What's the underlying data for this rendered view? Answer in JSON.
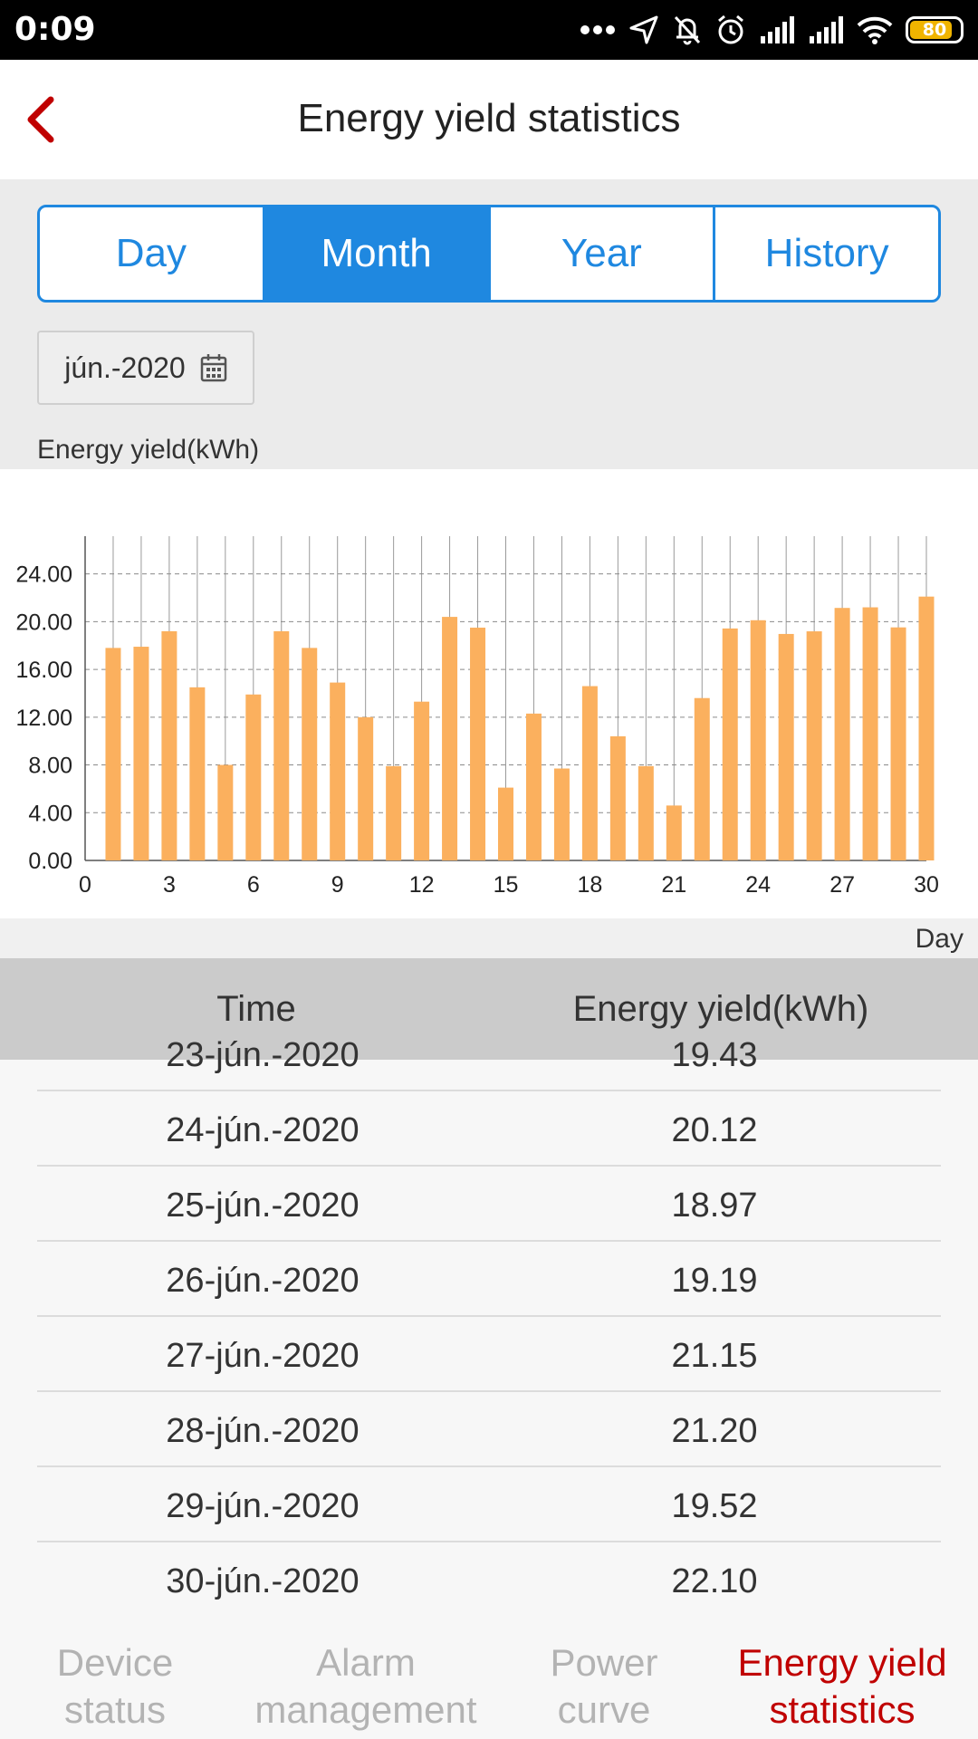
{
  "status_bar": {
    "time": "0:09",
    "battery_level": "80",
    "icons": [
      "more-dots-icon",
      "location-arrow-icon",
      "bell-muted-icon",
      "alarm-clock-icon",
      "signal-icon",
      "signal-icon",
      "wifi-icon",
      "battery-icon"
    ]
  },
  "header": {
    "title": "Energy yield statistics",
    "back_icon": "chevron-left-icon"
  },
  "tabs": {
    "items": [
      "Day",
      "Month",
      "Year",
      "History"
    ],
    "active": "Month"
  },
  "date_picker": {
    "value": "jún.-2020",
    "icon": "calendar-icon"
  },
  "chart_label": "Energy yield(kWh)",
  "colors": {
    "accent": "#1f88e0",
    "bar": "#fbb05e",
    "active_nav": "#c00000",
    "back": "#c00000"
  },
  "chart_data": {
    "type": "bar",
    "title": "",
    "ylabel": "Energy yield(kWh)",
    "xlabel": "Day",
    "x": [
      1,
      2,
      3,
      4,
      5,
      6,
      7,
      8,
      9,
      10,
      11,
      12,
      13,
      14,
      15,
      16,
      17,
      18,
      19,
      20,
      21,
      22,
      23,
      24,
      25,
      26,
      27,
      28,
      29,
      30
    ],
    "values": [
      17.8,
      17.9,
      19.2,
      14.5,
      8.0,
      13.9,
      19.2,
      17.8,
      14.9,
      12.0,
      7.9,
      13.3,
      20.4,
      19.5,
      6.1,
      12.3,
      7.7,
      14.6,
      10.4,
      7.9,
      4.6,
      13.6,
      19.43,
      20.12,
      18.97,
      19.19,
      21.15,
      21.2,
      19.52,
      22.1
    ],
    "ylim": [
      0,
      26.4
    ],
    "xlim": [
      0,
      30
    ],
    "y_ticks": [
      "0.00",
      "4.00",
      "8.00",
      "12.00",
      "16.00",
      "20.00",
      "24.00"
    ],
    "x_ticks": [
      "0",
      "3",
      "6",
      "9",
      "12",
      "15",
      "18",
      "21",
      "24",
      "27",
      "30"
    ],
    "grid": true,
    "legend": "none"
  },
  "table": {
    "headers": [
      "Time",
      "Energy yield(kWh)"
    ],
    "rows": [
      {
        "date": "23-jún.-2020",
        "value": "19.43"
      },
      {
        "date": "24-jún.-2020",
        "value": "20.12"
      },
      {
        "date": "25-jún.-2020",
        "value": "18.97"
      },
      {
        "date": "26-jún.-2020",
        "value": "19.19"
      },
      {
        "date": "27-jún.-2020",
        "value": "21.15"
      },
      {
        "date": "28-jún.-2020",
        "value": "21.20"
      },
      {
        "date": "29-jún.-2020",
        "value": "19.52"
      },
      {
        "date": "30-jún.-2020",
        "value": "22.10"
      }
    ]
  },
  "bottom_nav": {
    "items": [
      "Device\nstatus",
      "Alarm\nmanagement",
      "Power\ncurve",
      "Energy yield\nstatistics"
    ],
    "active_index": 3
  }
}
